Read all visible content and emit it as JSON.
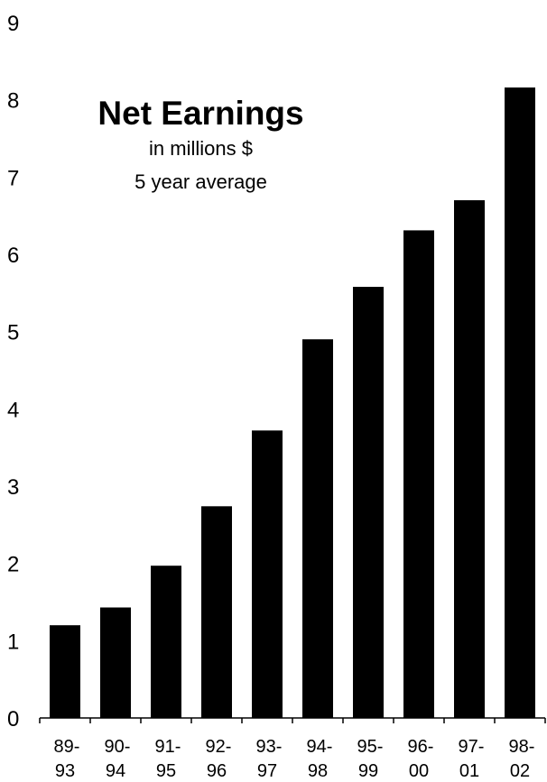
{
  "chart_data": {
    "type": "bar",
    "title": "Net Earnings",
    "subtitle_lines": [
      "in millions $",
      "5 year average"
    ],
    "categories": [
      [
        "89-",
        "93"
      ],
      [
        "90-",
        "94"
      ],
      [
        "91-",
        "95"
      ],
      [
        "92-",
        "96"
      ],
      [
        "93-",
        "97"
      ],
      [
        "94-",
        "98"
      ],
      [
        "95-",
        "99"
      ],
      [
        "96-",
        "00"
      ],
      [
        "97-",
        "01"
      ],
      [
        "98-",
        "02"
      ]
    ],
    "values": [
      1.2,
      1.43,
      1.97,
      2.74,
      3.72,
      4.9,
      5.58,
      6.31,
      6.7,
      8.16
    ],
    "ylim": [
      0,
      9
    ],
    "yticks": [
      "0",
      "1",
      "2",
      "3",
      "4",
      "5",
      "6",
      "7",
      "8",
      "9"
    ],
    "bar_color": "#000000",
    "grid": false,
    "legend": "none"
  }
}
